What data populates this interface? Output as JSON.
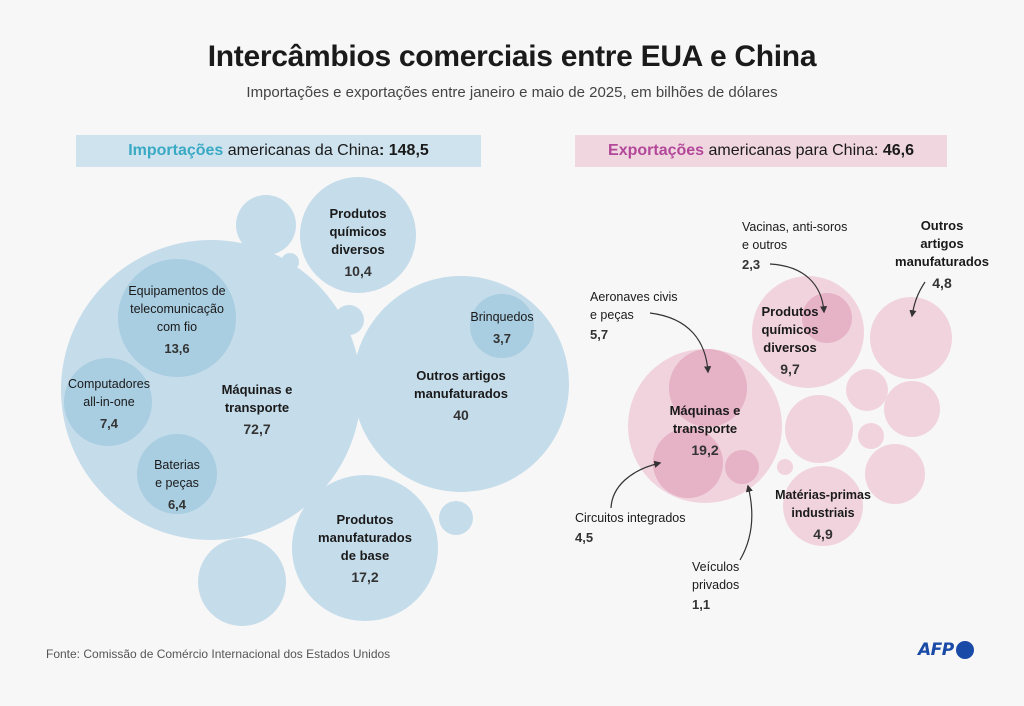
{
  "title": "Intercâmbios comerciais entre EUA e China",
  "subtitle": "Importações e exportações entre janeiro e maio de 2025, em bilhões de dólares",
  "imports_header": {
    "highlight": "Importações",
    "rest": " americanas da China",
    "colon": ": ",
    "total": "148,5"
  },
  "exports_header": {
    "highlight": "Exportações",
    "rest": " americanas para China: ",
    "total": "46,6"
  },
  "source": "Fonte: Comissão de Comércio Internacional dos Estados Unidos",
  "logo": "AFP",
  "colors": {
    "imports_fill": "#c5dcea",
    "imports_inner": "#a9cde1",
    "exports_fill": "#f1d3dd",
    "exports_inner": "#e6b2c5",
    "exports_small": "#eec7d4",
    "header_imports": "#cfe3ef",
    "header_exports": "#f0d6df"
  },
  "chart_data": [
    {
      "type": "bubble",
      "name": "Importações americanas da China",
      "total": 148.5,
      "unit": "bilhões de dólares",
      "categories": [
        {
          "label": [
            "Máquinas e",
            "transporte"
          ],
          "value": 72.7,
          "value_label": "72,7",
          "sub": [
            {
              "label": [
                "Equipamentos de",
                "telecomunicação",
                "com fio"
              ],
              "value": 13.6,
              "value_label": "13,6"
            },
            {
              "label": [
                "Computadores",
                "all-in-one"
              ],
              "value": 7.4,
              "value_label": "7,4"
            },
            {
              "label": [
                "Baterias",
                "e peças"
              ],
              "value": 6.4,
              "value_label": "6,4"
            }
          ]
        },
        {
          "label": [
            "Outros artigos",
            "manufaturados"
          ],
          "value": 40,
          "value_label": "40",
          "sub": [
            {
              "label": [
                "Brinquedos"
              ],
              "value": 3.7,
              "value_label": "3,7"
            }
          ]
        },
        {
          "label": [
            "Produtos",
            "manufaturados",
            "de base"
          ],
          "value": 17.2,
          "value_label": "17,2"
        },
        {
          "label": [
            "Produtos",
            "químicos",
            "diversos"
          ],
          "value": 10.4,
          "value_label": "10,4"
        }
      ]
    },
    {
      "type": "bubble",
      "name": "Exportações americanas para China",
      "total": 46.6,
      "unit": "bilhões de dólares",
      "categories": [
        {
          "label": [
            "Máquinas e",
            "transporte"
          ],
          "value": 19.2,
          "value_label": "19,2",
          "sub": [
            {
              "label": [
                "Aeronaves civis",
                "e peças"
              ],
              "value": 5.7,
              "value_label": "5,7"
            },
            {
              "label": [
                "Circuitos integrados"
              ],
              "value": 4.5,
              "value_label": "4,5"
            },
            {
              "label": [
                "Veículos",
                "privados"
              ],
              "value": 1.1,
              "value_label": "1,1"
            }
          ]
        },
        {
          "label": [
            "Produtos",
            "químicos",
            "diversos"
          ],
          "value": 9.7,
          "value_label": "9,7",
          "sub": [
            {
              "label": [
                "Vacinas, anti-soros",
                "e outros"
              ],
              "value": 2.3,
              "value_label": "2,3"
            }
          ]
        },
        {
          "label": [
            "Matérias-primas",
            "industriais"
          ],
          "value": 4.9,
          "value_label": "4,9"
        },
        {
          "label": [
            "Outros",
            "artigos",
            "manufaturados"
          ],
          "value": 4.8,
          "value_label": "4,8"
        }
      ]
    }
  ]
}
